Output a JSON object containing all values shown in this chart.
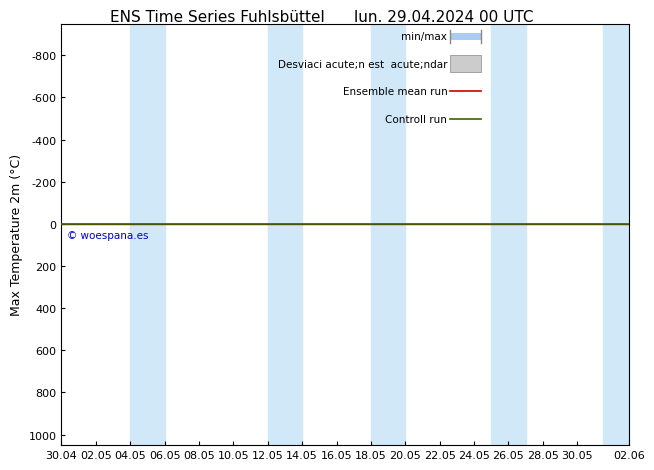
{
  "title_left": "ENS Time Series Fuhlsbüttel",
  "title_right": "lun. 29.04.2024 00 UTC",
  "ylabel": "Max Temperature 2m (°C)",
  "ylim_bottom": 1050,
  "ylim_top": -950,
  "yticks": [
    -800,
    -600,
    -400,
    -200,
    0,
    200,
    400,
    600,
    800,
    1000
  ],
  "xlim_start": 0,
  "xlim_end": 33,
  "xtick_labels": [
    "30.04",
    "02.05",
    "04.05",
    "06.05",
    "08.05",
    "10.05",
    "12.05",
    "14.05",
    "16.05",
    "18.05",
    "20.05",
    "22.05",
    "24.05",
    "26.05",
    "28.05",
    "30.05",
    "02.06"
  ],
  "xtick_positions": [
    0,
    2,
    4,
    6,
    8,
    10,
    12,
    14,
    16,
    18,
    20,
    22,
    24,
    26,
    28,
    30,
    33
  ],
  "shaded_bands": [
    [
      4.0,
      6.0
    ],
    [
      12.0,
      14.0
    ],
    [
      18.0,
      20.0
    ],
    [
      25.0,
      27.0
    ],
    [
      31.5,
      33.0
    ]
  ],
  "band_color": "#d0e8f8",
  "background_color": "#ffffff",
  "green_line_color": "#336600",
  "red_line_color": "#cc0000",
  "copyright_text": "© woespana.es",
  "copyright_color": "#0000cc",
  "legend_minmax_label": "min/max",
  "legend_std_label": "Desviaci acute;n est  acute;ndar",
  "legend_ensemble_label": "Ensemble mean run",
  "legend_control_label": "Controll run",
  "legend_minmax_color": "#aaccee",
  "legend_std_color": "#cccccc",
  "legend_ensemble_color": "#cc0000",
  "legend_control_color": "#336600",
  "title_fontsize": 11,
  "axis_label_fontsize": 9,
  "tick_fontsize": 8,
  "legend_fontsize": 7.5
}
